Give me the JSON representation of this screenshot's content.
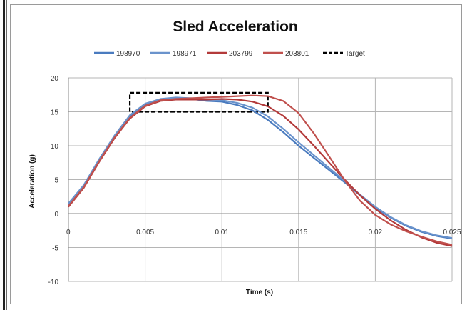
{
  "chart_data": {
    "type": "line",
    "title": "Sled Acceleration",
    "xlabel": "Time (s)",
    "ylabel": "Acceleration (g)",
    "xlim": [
      0,
      0.025
    ],
    "ylim": [
      -10,
      20
    ],
    "xticks": [
      0,
      0.005,
      0.01,
      0.015,
      0.02,
      0.025
    ],
    "xtick_labels": [
      "0",
      "0.005",
      "0.01",
      "0.015",
      "0.02",
      "0.025"
    ],
    "yticks": [
      -10,
      -5,
      0,
      5,
      10,
      15,
      20
    ],
    "ytick_labels": [
      "-10",
      "-5",
      "0",
      "5",
      "10",
      "15",
      "20"
    ],
    "grid": true,
    "legend_position": "top",
    "series": [
      {
        "name": "198970",
        "color": "#4a7bbf",
        "x": [
          0,
          0.001,
          0.002,
          0.003,
          0.004,
          0.005,
          0.006,
          0.007,
          0.008,
          0.009,
          0.01,
          0.011,
          0.012,
          0.013,
          0.014,
          0.015,
          0.016,
          0.017,
          0.018,
          0.019,
          0.02,
          0.021,
          0.022,
          0.023,
          0.024,
          0.025
        ],
        "y": [
          1.3,
          4.0,
          7.8,
          11.3,
          14.3,
          16.0,
          16.8,
          17.0,
          16.9,
          16.6,
          16.5,
          16.0,
          15.2,
          13.8,
          12.0,
          10.0,
          8.2,
          6.4,
          4.6,
          2.7,
          0.9,
          -0.6,
          -1.8,
          -2.7,
          -3.3,
          -3.7
        ]
      },
      {
        "name": "198971",
        "color": "#6a93cc",
        "x": [
          0,
          0.001,
          0.002,
          0.003,
          0.004,
          0.005,
          0.006,
          0.007,
          0.008,
          0.009,
          0.01,
          0.011,
          0.012,
          0.013,
          0.014,
          0.015,
          0.016,
          0.017,
          0.018,
          0.019,
          0.02,
          0.021,
          0.022,
          0.023,
          0.024,
          0.025
        ],
        "y": [
          1.5,
          4.2,
          8.0,
          11.5,
          14.5,
          16.2,
          16.9,
          17.1,
          17.0,
          16.8,
          16.7,
          16.3,
          15.6,
          14.3,
          12.5,
          10.5,
          8.6,
          6.7,
          4.8,
          2.8,
          1.0,
          -0.5,
          -1.7,
          -2.6,
          -3.2,
          -3.6
        ]
      },
      {
        "name": "203799",
        "color": "#b33a3a",
        "x": [
          0,
          0.001,
          0.002,
          0.003,
          0.004,
          0.005,
          0.006,
          0.007,
          0.008,
          0.009,
          0.01,
          0.011,
          0.012,
          0.013,
          0.014,
          0.015,
          0.016,
          0.017,
          0.018,
          0.019,
          0.02,
          0.021,
          0.022,
          0.023,
          0.024,
          0.025
        ],
        "y": [
          1.0,
          3.8,
          7.6,
          11.1,
          14.0,
          15.8,
          16.6,
          16.8,
          16.8,
          16.8,
          16.9,
          16.8,
          16.5,
          15.8,
          14.4,
          12.4,
          10.0,
          7.5,
          5.0,
          2.7,
          0.7,
          -1.0,
          -2.4,
          -3.5,
          -4.3,
          -4.8
        ]
      },
      {
        "name": "203801",
        "color": "#c0504d",
        "x": [
          0,
          0.001,
          0.002,
          0.003,
          0.004,
          0.005,
          0.006,
          0.007,
          0.008,
          0.009,
          0.01,
          0.011,
          0.012,
          0.013,
          0.014,
          0.015,
          0.016,
          0.017,
          0.018,
          0.019,
          0.02,
          0.021,
          0.022,
          0.023,
          0.024,
          0.025
        ],
        "y": [
          1.1,
          3.9,
          7.7,
          11.2,
          14.1,
          15.9,
          16.7,
          16.9,
          17.0,
          17.1,
          17.2,
          17.3,
          17.4,
          17.3,
          16.6,
          14.8,
          11.8,
          8.4,
          4.9,
          1.9,
          -0.2,
          -1.6,
          -2.6,
          -3.4,
          -4.1,
          -4.6
        ]
      }
    ],
    "target": {
      "name": "Target",
      "color": "#000000",
      "x": [
        0.004,
        0.013
      ],
      "y": [
        15,
        17.8
      ]
    }
  }
}
